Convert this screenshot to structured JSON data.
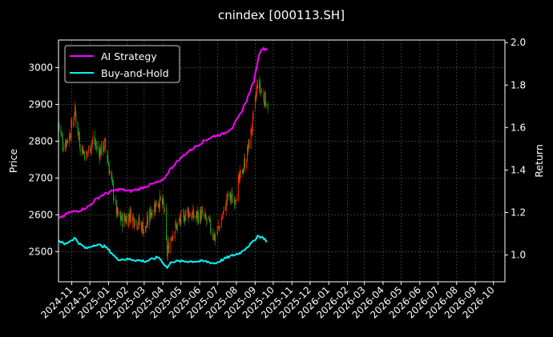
{
  "chart_data": {
    "type": "line",
    "title": "cnindex [000113.SH]",
    "xlabel": "",
    "ylabel": "Price",
    "y2label": "Return",
    "x_ticks": [
      "2024-11",
      "2024-12",
      "2025-01",
      "2025-02",
      "2025-03",
      "2025-04",
      "2025-05",
      "2025-06",
      "2025-07",
      "2025-08",
      "2025-09",
      "2025-10",
      "2025-11",
      "2025-12",
      "2026-01",
      "2026-02",
      "2026-03",
      "2026-04",
      "2026-05",
      "2026-06",
      "2026-07",
      "2026-08",
      "2026-09",
      "2026-10"
    ],
    "xlim": [
      "2024-10-10",
      "2026-10-20"
    ],
    "ylim": [
      2418,
      3075
    ],
    "y_ticks": [
      2500,
      2600,
      2700,
      2800,
      2900,
      3000
    ],
    "y2lim": [
      0.874,
      2.012
    ],
    "y2_ticks": [
      1.0,
      1.2,
      1.4,
      1.6,
      1.8,
      2.0
    ],
    "grid": true,
    "legend_position": "upper-left",
    "colors": {
      "up": "#ff2a00",
      "down": "#1fa81f",
      "ai": "#ff00ff",
      "bh": "#00f5f5",
      "grid": "#5a5a5a"
    },
    "price_anchors": [
      [
        "2024-10-10",
        2850
      ],
      [
        "2024-10-18",
        2790
      ],
      [
        "2024-10-28",
        2815
      ],
      [
        "2024-11-06",
        2880
      ],
      [
        "2024-11-15",
        2790
      ],
      [
        "2024-11-25",
        2760
      ],
      [
        "2024-12-06",
        2805
      ],
      [
        "2024-12-16",
        2770
      ],
      [
        "2024-12-26",
        2790
      ],
      [
        "2025-01-06",
        2690
      ],
      [
        "2025-01-15",
        2600
      ],
      [
        "2025-01-24",
        2585
      ],
      [
        "2025-02-06",
        2600
      ],
      [
        "2025-02-18",
        2580
      ],
      [
        "2025-03-03",
        2560
      ],
      [
        "2025-03-12",
        2610
      ],
      [
        "2025-03-25",
        2640
      ],
      [
        "2025-04-03",
        2620
      ],
      [
        "2025-04-08",
        2495
      ],
      [
        "2025-04-16",
        2550
      ],
      [
        "2025-04-28",
        2580
      ],
      [
        "2025-05-12",
        2610
      ],
      [
        "2025-05-22",
        2595
      ],
      [
        "2025-06-04",
        2600
      ],
      [
        "2025-06-16",
        2575
      ],
      [
        "2025-06-26",
        2540
      ],
      [
        "2025-07-06",
        2580
      ],
      [
        "2025-07-18",
        2650
      ],
      [
        "2025-07-28",
        2640
      ],
      [
        "2025-08-07",
        2700
      ],
      [
        "2025-08-18",
        2760
      ],
      [
        "2025-08-28",
        2850
      ],
      [
        "2025-09-05",
        2960
      ],
      [
        "2025-09-12",
        2930
      ],
      [
        "2025-09-22",
        2900
      ]
    ],
    "series": [
      {
        "name": "AI Strategy",
        "points": [
          [
            "2024-10-10",
            1.17
          ],
          [
            "2024-10-28",
            1.2
          ],
          [
            "2024-11-14",
            1.21
          ],
          [
            "2024-11-30",
            1.23
          ],
          [
            "2024-12-10",
            1.26
          ],
          [
            "2024-12-20",
            1.28
          ],
          [
            "2025-01-06",
            1.3
          ],
          [
            "2025-01-20",
            1.31
          ],
          [
            "2025-02-05",
            1.3
          ],
          [
            "2025-02-20",
            1.31
          ],
          [
            "2025-03-10",
            1.33
          ],
          [
            "2025-04-01",
            1.35
          ],
          [
            "2025-04-12",
            1.4
          ],
          [
            "2025-04-28",
            1.45
          ],
          [
            "2025-05-10",
            1.48
          ],
          [
            "2025-05-25",
            1.51
          ],
          [
            "2025-06-10",
            1.54
          ],
          [
            "2025-06-25",
            1.56
          ],
          [
            "2025-07-10",
            1.57
          ],
          [
            "2025-07-25",
            1.6
          ],
          [
            "2025-08-07",
            1.66
          ],
          [
            "2025-08-18",
            1.73
          ],
          [
            "2025-08-30",
            1.82
          ],
          [
            "2025-09-05",
            1.91
          ],
          [
            "2025-09-10",
            1.97
          ],
          [
            "2025-09-22",
            1.97
          ]
        ]
      },
      {
        "name": "Buy-and-Hold",
        "points": [
          [
            "2024-10-10",
            1.07
          ],
          [
            "2024-10-20",
            1.05
          ],
          [
            "2024-11-06",
            1.08
          ],
          [
            "2024-11-15",
            1.05
          ],
          [
            "2024-11-25",
            1.03
          ],
          [
            "2024-12-10",
            1.05
          ],
          [
            "2024-12-26",
            1.04
          ],
          [
            "2025-01-06",
            1.01
          ],
          [
            "2025-01-15",
            0.98
          ],
          [
            "2025-02-05",
            0.98
          ],
          [
            "2025-03-03",
            0.97
          ],
          [
            "2025-03-25",
            0.99
          ],
          [
            "2025-04-08",
            0.94
          ],
          [
            "2025-04-16",
            0.97
          ],
          [
            "2025-05-10",
            0.97
          ],
          [
            "2025-06-10",
            0.97
          ],
          [
            "2025-06-26",
            0.96
          ],
          [
            "2025-07-18",
            0.99
          ],
          [
            "2025-08-07",
            1.01
          ],
          [
            "2025-08-28",
            1.06
          ],
          [
            "2025-09-05",
            1.09
          ],
          [
            "2025-09-15",
            1.08
          ],
          [
            "2025-09-22",
            1.06
          ]
        ]
      }
    ]
  }
}
